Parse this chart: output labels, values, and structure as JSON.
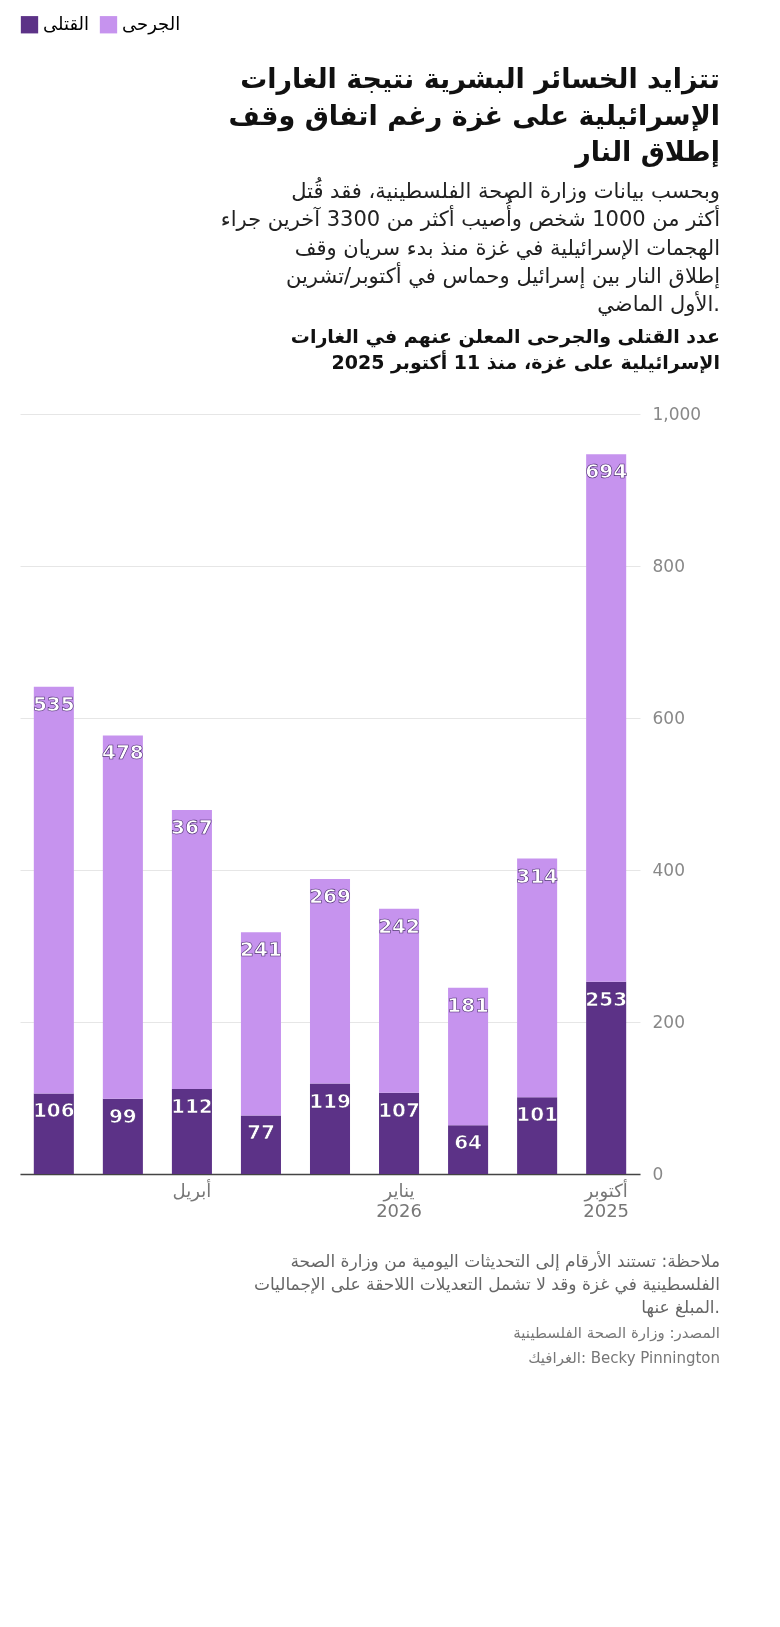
{
  "chart_data": {
    "type": "bar",
    "stacked": true,
    "title": "تتزايد الخسائر البشرية نتيجة الغارات الإسرائيلية على غزة رغم اتفاق وقف إطلاق النار",
    "subtitle": "وبحسب بيانات وزارة الصحة الفلسطينية، فقد قُتل أكثر من 1000 شخص وأُصيب أكثر من 3300 آخرين جراء الهجمات الإسرائيلية في غزة منذ بدء سريان وقف إطلاق النار بين إسرائيل وحماس في أكتوبر/تشرين الأول الماضي.",
    "categories": [
      null,
      null,
      "أبريل",
      null,
      null,
      "يناير\n2026",
      null,
      null,
      "أكتوبر\n2025"
    ],
    "series": [
      {
        "name": "القتلى",
        "color": "#5c3287",
        "values": [
          106,
          99,
          112,
          77,
          119,
          107,
          64,
          101,
          253
        ]
      },
      {
        "name": "الجرحى",
        "color": "#c693ee",
        "values": [
          535,
          478,
          367,
          241,
          269,
          242,
          181,
          314,
          694
        ]
      }
    ],
    "ylim": [
      0,
      1000
    ],
    "yticks": [
      0,
      200,
      400,
      600,
      800,
      {
        "value": 1000,
        "label": "1,000"
      }
    ],
    "grid": "y",
    "legend": "top",
    "data_labels": true,
    "annotations": [
      "عدد القتلى والجرحى المعلن عنهم في الغارات الإسرائيلية على غزة، منذ 11 أكتوبر 2025",
      "ملاحظة: تستند الأرقام إلى التحديثات اليومية من وزارة الصحة الفلسطينية في غزة وقد لا تشمل التعديلات اللاحقة على الإجماليات المبلغ عنها.",
      "المصدر: وزارة الصحة الفلسطينية",
      "الغرافيك: Becky Pinnington"
    ]
  }
}
